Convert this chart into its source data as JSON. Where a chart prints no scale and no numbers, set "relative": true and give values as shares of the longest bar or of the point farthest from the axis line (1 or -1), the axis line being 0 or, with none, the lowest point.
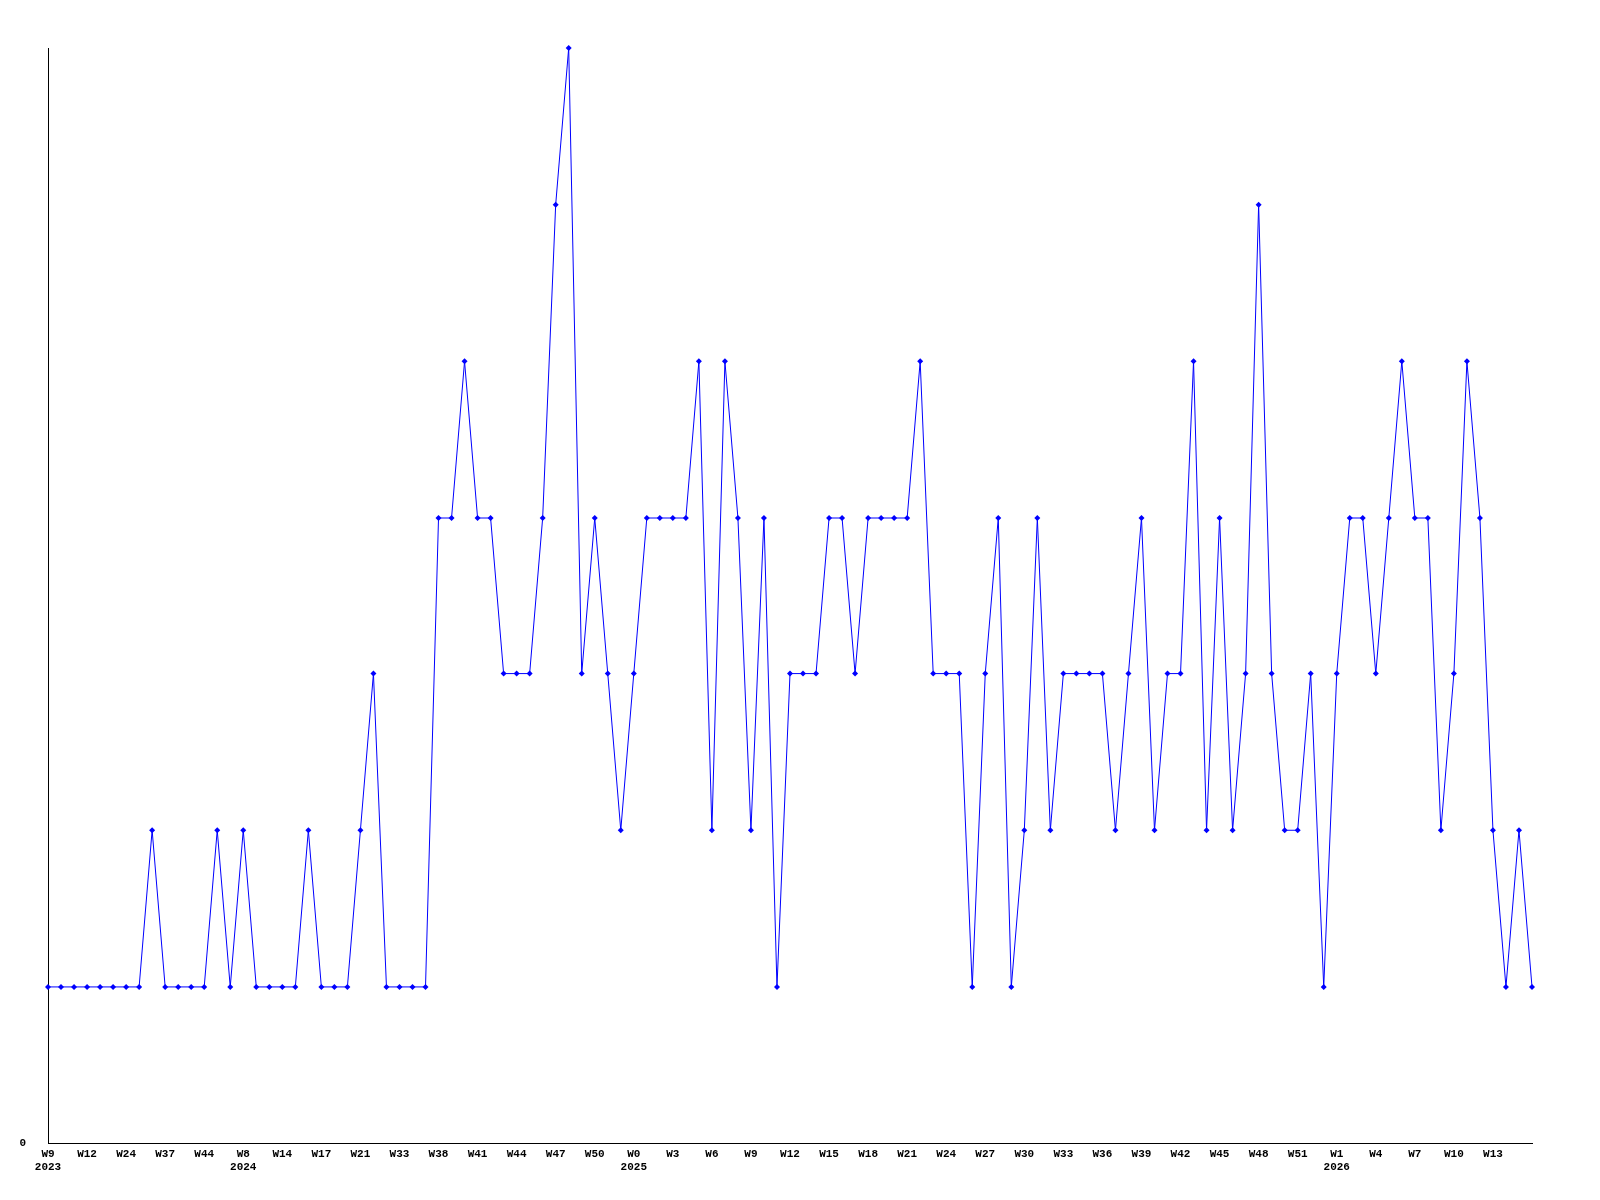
{
  "chart_data": {
    "type": "line",
    "relative": true,
    "annotations": [
      "0"
    ],
    "marker": "diamond",
    "legend": false,
    "grid": false,
    "categories": [
      "W9\n2023",
      null,
      null,
      "W12",
      null,
      null,
      "W24",
      null,
      null,
      "W37",
      null,
      null,
      "W44",
      null,
      null,
      "W8\n2024",
      null,
      null,
      "W14",
      null,
      null,
      "W17",
      null,
      null,
      "W21",
      null,
      null,
      "W33",
      null,
      null,
      "W38",
      null,
      null,
      "W41",
      null,
      null,
      "W44",
      null,
      null,
      "W47",
      null,
      null,
      "W50",
      null,
      null,
      "W0\n2025",
      null,
      null,
      "W3",
      null,
      null,
      "W6",
      null,
      null,
      "W9",
      null,
      null,
      "W12",
      null,
      null,
      "W15",
      null,
      null,
      "W18",
      null,
      null,
      "W21",
      null,
      null,
      "W24",
      null,
      null,
      "W27",
      null,
      null,
      "W30",
      null,
      null,
      "W33",
      null,
      null,
      "W36",
      null,
      null,
      "W39",
      null,
      null,
      "W42",
      null,
      null,
      "W45",
      null,
      null,
      "W48",
      null,
      null,
      "W51",
      null,
      null,
      "W1\n2026",
      null,
      null,
      "W4",
      null,
      null,
      "W7",
      null,
      null,
      "W10",
      null,
      null,
      "W13",
      null,
      null,
      null
    ],
    "series": [
      {
        "color": "#0000ff",
        "values": [
          0.143,
          0.143,
          0.143,
          0.143,
          0.143,
          0.143,
          0.143,
          0.143,
          0.286,
          0.143,
          0.143,
          0.143,
          0.143,
          0.286,
          0.143,
          0.286,
          0.143,
          0.143,
          0.143,
          0.143,
          0.286,
          0.143,
          0.143,
          0.143,
          0.286,
          0.429,
          0.143,
          0.143,
          0.143,
          0.143,
          0.571,
          0.571,
          0.714,
          0.571,
          0.571,
          0.429,
          0.429,
          0.429,
          0.571,
          0.857,
          1,
          0.429,
          0.571,
          0.429,
          0.286,
          0.429,
          0.571,
          0.571,
          0.571,
          0.571,
          0.714,
          0.286,
          0.714,
          0.571,
          0.286,
          0.571,
          0.143,
          0.429,
          0.429,
          0.429,
          0.571,
          0.571,
          0.429,
          0.571,
          0.571,
          0.571,
          0.571,
          0.714,
          0.429,
          0.429,
          0.429,
          0.143,
          0.429,
          0.571,
          0.143,
          0.286,
          0.571,
          0.286,
          0.429,
          0.429,
          0.429,
          0.429,
          0.286,
          0.429,
          0.571,
          0.286,
          0.429,
          0.429,
          0.714,
          0.286,
          0.571,
          0.286,
          0.429,
          0.857,
          0.429,
          0.286,
          0.286,
          0.429,
          0.143,
          0.429,
          0.571,
          0.571,
          0.429,
          0.571,
          0.714,
          0.571,
          0.571,
          0.286,
          0.429,
          0.714,
          0.571,
          0.286,
          0.143,
          0.286,
          0.143
        ]
      }
    ]
  }
}
